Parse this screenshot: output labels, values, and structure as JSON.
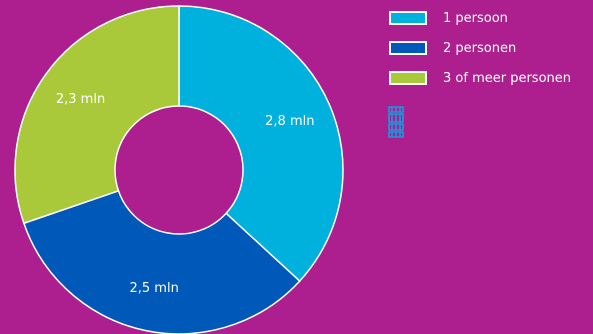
{
  "chart_data": {
    "type": "pie",
    "donut": true,
    "categories": [
      "1 persoon",
      "2 personen",
      "3 of meer personen"
    ],
    "values": [
      2.8,
      2.5,
      2.3
    ],
    "data_labels": [
      "2,8 mln",
      "2,5 mln",
      "2,3 mln"
    ],
    "colors": [
      "#00b1dd",
      "#0058b8",
      "#a9c93a"
    ],
    "legend_position": "top-right",
    "start_angle_deg": 0,
    "direction": "clockwise"
  },
  "colors": {
    "background": "#ad1f8f",
    "separator": "#ffffff",
    "label_text": "#ffffff",
    "logo": "#1a98e0"
  },
  "logo": {
    "icon": "cbs-logo-icon"
  }
}
